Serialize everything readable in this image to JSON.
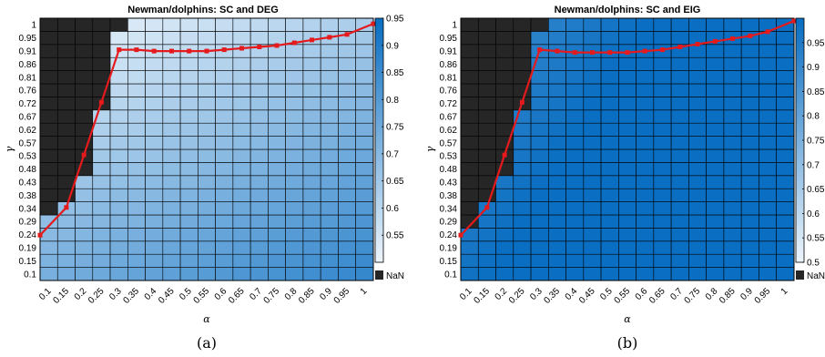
{
  "chart_data": [
    {
      "type": "heatmap",
      "title": "Newman/dolphins: SC and DEG",
      "xlabel": "α",
      "ylabel": "γ",
      "caption": "(a)",
      "x": [
        "0.1",
        "0.15",
        "0.2",
        "0.25",
        "0.3",
        "0.35",
        "0.4",
        "0.45",
        "0.5",
        "0.55",
        "0.6",
        "0.65",
        "0.7",
        "0.75",
        "0.8",
        "0.85",
        "0.9",
        "0.95",
        "1"
      ],
      "y": [
        "0.1",
        "0.15",
        "0.19",
        "0.24",
        "0.29",
        "0.34",
        "0.38",
        "0.43",
        "0.48",
        "0.53",
        "0.57",
        "0.62",
        "0.67",
        "0.72",
        "0.76",
        "0.81",
        "0.86",
        "0.91",
        "0.95",
        "1"
      ],
      "colorbar": {
        "min": 0.5,
        "max": 0.95,
        "ticks": [
          "0.55",
          "0.6",
          "0.65",
          "0.7",
          "0.75",
          "0.8",
          "0.85",
          "0.9",
          "0.95"
        ],
        "nan_label": "NaN",
        "nan_color": "#262626",
        "low_color": "#eff6fc",
        "high_color": "#0a6ec2"
      },
      "nan_start_row": [
        5,
        6,
        8,
        13,
        19,
        20,
        20,
        20,
        20,
        20,
        20,
        20,
        20,
        20,
        20,
        20,
        20,
        20,
        20
      ],
      "gradient": {
        "base": 0.52,
        "x_gain": 0.29,
        "y_gain": 0.5,
        "floor_high_y": 0.62,
        "floor_gain": 0.26
      },
      "line": {
        "color": "#e41a1c",
        "y": [
          0.24,
          0.34,
          0.53,
          0.72,
          0.91,
          0.91,
          0.905,
          0.905,
          0.905,
          0.905,
          0.91,
          0.915,
          0.92,
          0.925,
          0.935,
          0.945,
          0.955,
          0.965,
          0.98
        ]
      }
    },
    {
      "type": "heatmap",
      "title": "Newman/dolphins: SC and EIG",
      "xlabel": "α",
      "ylabel": "γ",
      "caption": "(b)",
      "x": [
        "0.1",
        "0.15",
        "0.2",
        "0.25",
        "0.3",
        "0.35",
        "0.4",
        "0.45",
        "0.5",
        "0.55",
        "0.6",
        "0.65",
        "0.7",
        "0.75",
        "0.8",
        "0.85",
        "0.9",
        "0.95",
        "1"
      ],
      "y": [
        "0.1",
        "0.15",
        "0.19",
        "0.24",
        "0.29",
        "0.34",
        "0.38",
        "0.43",
        "0.48",
        "0.53",
        "0.57",
        "0.62",
        "0.67",
        "0.72",
        "0.76",
        "0.81",
        "0.86",
        "0.91",
        "0.95",
        "1"
      ],
      "colorbar": {
        "min": 0.5,
        "max": 1.0,
        "ticks": [
          "0.5",
          "0.55",
          "0.6",
          "0.65",
          "0.7",
          "0.75",
          "0.8",
          "0.85",
          "0.9",
          "0.95"
        ],
        "nan_label": "NaN",
        "nan_color": "#262626",
        "low_color": "#eff6fc",
        "high_color": "#0a6ec2"
      },
      "nan_start_row": [
        4,
        6,
        8,
        13,
        19,
        20,
        20,
        20,
        20,
        20,
        20,
        20,
        20,
        20,
        20,
        20,
        20,
        20,
        20
      ],
      "gradient": {
        "base": 0.97,
        "x_gain": 0.46,
        "y_gain": 0.22,
        "floor_high_y": 0.0,
        "floor_gain": 0.0
      },
      "line": {
        "color": "#e41a1c",
        "y": [
          0.24,
          0.34,
          0.53,
          0.72,
          0.91,
          0.905,
          0.9,
          0.9,
          0.9,
          0.9,
          0.905,
          0.91,
          0.92,
          0.93,
          0.94,
          0.95,
          0.96,
          0.975,
          0.99
        ]
      }
    }
  ]
}
